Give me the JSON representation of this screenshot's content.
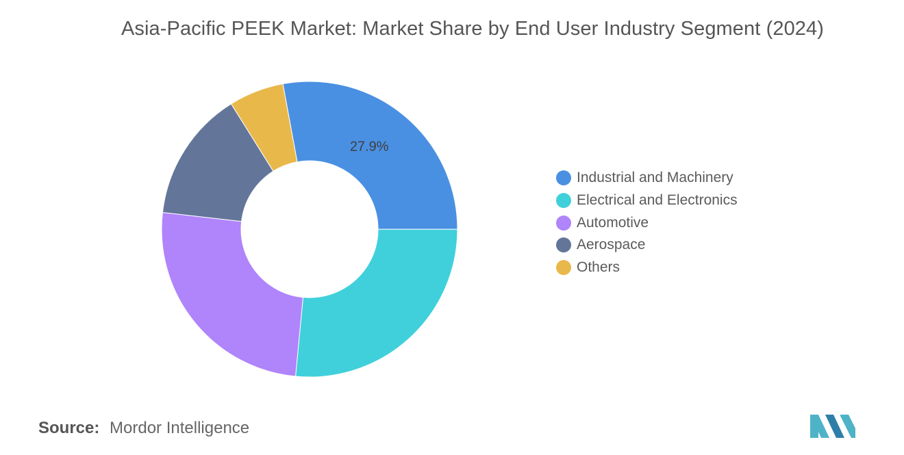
{
  "chart_data": {
    "type": "pie",
    "donut": true,
    "title": "Asia-Pacific PEEK Market: Market Share by End User Industry Segment (2024)",
    "series": [
      {
        "categories": [
          "Industrial and Machinery",
          "Electrical and Electronics",
          "Automotive",
          "Aerospace",
          "Others"
        ],
        "values": [
          27.9,
          26.5,
          25.3,
          14.3,
          6.0
        ],
        "colors": [
          "#4a90e2",
          "#40d0db",
          "#b084fb",
          "#64759a",
          "#e9b84b"
        ]
      }
    ],
    "data_labels": [
      {
        "category": "Industrial and Machinery",
        "text": "27.9%"
      }
    ],
    "legend": {
      "position": "right",
      "entries": [
        "Industrial and Machinery",
        "Electrical and Electronics",
        "Automotive",
        "Aerospace",
        "Others"
      ]
    }
  },
  "source": {
    "label": "Source:",
    "value": "Mordor Intelligence"
  },
  "logo": {
    "icon": "mordor-intelligence-logo-icon",
    "colors": [
      "#4fb3c8",
      "#2e7fa8"
    ]
  }
}
